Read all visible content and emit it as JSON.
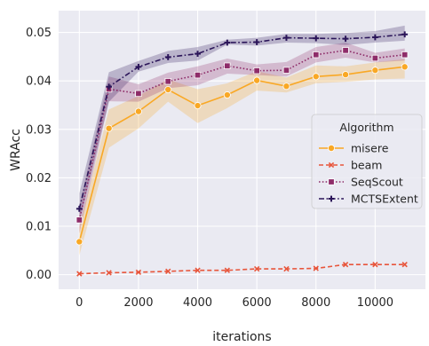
{
  "chart_data": {
    "type": "line",
    "xlabel": "iterations",
    "ylabel": "WRAcc",
    "xlim": [
      -700,
      11700
    ],
    "ylim": [
      -0.003,
      0.0545
    ],
    "xticks": [
      0,
      2000,
      4000,
      6000,
      8000,
      10000
    ],
    "yticks": [
      0.0,
      0.01,
      0.02,
      0.03,
      0.04,
      0.05
    ],
    "xtick_labels": [
      "0",
      "2000",
      "4000",
      "6000",
      "8000",
      "10000"
    ],
    "ytick_labels": [
      "0.00",
      "0.01",
      "0.02",
      "0.03",
      "0.04",
      "0.05"
    ],
    "grid": true,
    "background": "#eaeaf2",
    "legend": {
      "title": "Algorithm",
      "placement": "center-right"
    },
    "x": [
      0,
      1000,
      2000,
      3000,
      4000,
      5000,
      6000,
      7000,
      8000,
      9000,
      10000,
      11000
    ],
    "series": [
      {
        "name": "misere",
        "color": "#f9a825",
        "dash": "solid",
        "marker": "circle",
        "values": [
          0.0068,
          0.0302,
          0.0337,
          0.0382,
          0.0349,
          0.0371,
          0.0401,
          0.0389,
          0.0409,
          0.0413,
          0.0422,
          0.0429
        ],
        "lower": [
          0.004,
          0.0262,
          0.0302,
          0.0357,
          0.0313,
          0.0344,
          0.038,
          0.0376,
          0.0395,
          0.0398,
          0.0403,
          0.0405
        ],
        "upper": [
          0.0098,
          0.0341,
          0.0369,
          0.0403,
          0.0383,
          0.0395,
          0.042,
          0.0407,
          0.0432,
          0.043,
          0.0438,
          0.0445
        ]
      },
      {
        "name": "beam",
        "color": "#e8553b",
        "dash": "dashed",
        "marker": "x",
        "values": [
          0.0002,
          0.0004,
          0.0005,
          0.0007,
          0.0009,
          0.0009,
          0.0012,
          0.0012,
          0.0013,
          0.0021,
          0.0021,
          0.0021
        ],
        "lower": null,
        "upper": null
      },
      {
        "name": "SeqScout",
        "color": "#8e2c69",
        "dash": "dotted",
        "marker": "square",
        "values": [
          0.0113,
          0.0383,
          0.0374,
          0.0399,
          0.0412,
          0.0431,
          0.0421,
          0.0422,
          0.0454,
          0.0463,
          0.0447,
          0.0454
        ],
        "lower": [
          0.0085,
          0.0358,
          0.0357,
          0.0385,
          0.0391,
          0.0415,
          0.0412,
          0.0409,
          0.0438,
          0.0448,
          0.0438,
          0.0442
        ],
        "upper": [
          0.0142,
          0.0409,
          0.0393,
          0.0417,
          0.043,
          0.0446,
          0.0434,
          0.0439,
          0.047,
          0.0479,
          0.0458,
          0.0467
        ]
      },
      {
        "name": "MCTSExtent",
        "color": "#2b1559",
        "dash": "dashdot",
        "marker": "plus",
        "values": [
          0.0136,
          0.0388,
          0.0429,
          0.0449,
          0.0456,
          0.0479,
          0.048,
          0.0489,
          0.0488,
          0.0487,
          0.049,
          0.0496
        ],
        "lower": [
          0.0108,
          0.0357,
          0.0419,
          0.0437,
          0.0442,
          0.0475,
          0.0473,
          0.0479,
          0.0478,
          0.0474,
          0.0479,
          0.0483
        ],
        "upper": [
          0.0168,
          0.0418,
          0.0441,
          0.0462,
          0.047,
          0.0485,
          0.0489,
          0.0497,
          0.0497,
          0.0499,
          0.0503,
          0.0514
        ]
      }
    ]
  }
}
